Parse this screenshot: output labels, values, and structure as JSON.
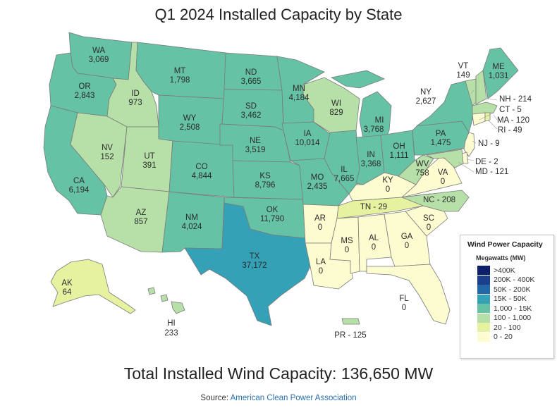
{
  "title": "Q1 2024 Installed Capacity by State",
  "legend": {
    "title": "Wind Power Capacity",
    "unit": "Megawatts (MW)",
    "bins": [
      {
        "label": ">400K",
        "color": "#0b1f6b"
      },
      {
        "label": "200K - 400K",
        "color": "#1b3f8c"
      },
      {
        "label": "50K - 200K",
        "color": "#2367a8"
      },
      {
        "label": "15K - 50K",
        "color": "#35a1b6"
      },
      {
        "label": "1,000 - 15K",
        "color": "#66c2a4"
      },
      {
        "label": "100 - 1,000",
        "color": "#b6e0a7"
      },
      {
        "label": "20 - 100",
        "color": "#e6f2a0"
      },
      {
        "label": "0 - 20",
        "color": "#fdfbd0"
      }
    ]
  },
  "states": {
    "WA": {
      "abbr": "WA",
      "value": "3,069",
      "color": "#66c2a4"
    },
    "OR": {
      "abbr": "OR",
      "value": "2,843",
      "color": "#66c2a4"
    },
    "CA": {
      "abbr": "CA",
      "value": "6,194",
      "color": "#66c2a4"
    },
    "ID": {
      "abbr": "ID",
      "value": "973",
      "color": "#b6e0a7"
    },
    "NV": {
      "abbr": "NV",
      "value": "152",
      "color": "#b6e0a7"
    },
    "UT": {
      "abbr": "UT",
      "value": "391",
      "color": "#b6e0a7"
    },
    "AZ": {
      "abbr": "AZ",
      "value": "857",
      "color": "#b6e0a7"
    },
    "MT": {
      "abbr": "MT",
      "value": "1,798",
      "color": "#66c2a4"
    },
    "WY": {
      "abbr": "WY",
      "value": "2,508",
      "color": "#66c2a4"
    },
    "CO": {
      "abbr": "CO",
      "value": "4,844",
      "color": "#66c2a4"
    },
    "NM": {
      "abbr": "NM",
      "value": "4,024",
      "color": "#66c2a4"
    },
    "ND": {
      "abbr": "ND",
      "value": "3,665",
      "color": "#66c2a4"
    },
    "SD": {
      "abbr": "SD",
      "value": "3,462",
      "color": "#66c2a4"
    },
    "NE": {
      "abbr": "NE",
      "value": "3,519",
      "color": "#66c2a4"
    },
    "KS": {
      "abbr": "KS",
      "value": "8,796",
      "color": "#66c2a4"
    },
    "OK": {
      "abbr": "OK",
      "value": "11,790",
      "color": "#66c2a4"
    },
    "TX": {
      "abbr": "TX",
      "value": "37,172",
      "color": "#35a1b6"
    },
    "MN": {
      "abbr": "MN",
      "value": "4,184",
      "color": "#66c2a4"
    },
    "IA": {
      "abbr": "IA",
      "value": "10,014",
      "color": "#66c2a4"
    },
    "MO": {
      "abbr": "MO",
      "value": "2,435",
      "color": "#66c2a4"
    },
    "AR": {
      "abbr": "AR",
      "value": "0",
      "color": "#fdfbd0"
    },
    "LA": {
      "abbr": "LA",
      "value": "0",
      "color": "#fdfbd0"
    },
    "WI": {
      "abbr": "WI",
      "value": "829",
      "color": "#b6e0a7"
    },
    "IL": {
      "abbr": "IL",
      "value": "7,665",
      "color": "#66c2a4"
    },
    "MI": {
      "abbr": "MI",
      "value": "3,768",
      "color": "#66c2a4"
    },
    "IN": {
      "abbr": "IN",
      "value": "3,368",
      "color": "#66c2a4"
    },
    "OH": {
      "abbr": "OH",
      "value": "1,111",
      "color": "#66c2a4"
    },
    "KY": {
      "abbr": "KY",
      "value": "0",
      "color": "#fdfbd0"
    },
    "TN": {
      "abbr": "TN",
      "value": "29",
      "color": "#e6f2a0"
    },
    "MS": {
      "abbr": "MS",
      "value": "0",
      "color": "#fdfbd0"
    },
    "AL": {
      "abbr": "AL",
      "value": "0",
      "color": "#fdfbd0"
    },
    "GA": {
      "abbr": "GA",
      "value": "0",
      "color": "#fdfbd0"
    },
    "FL": {
      "abbr": "FL",
      "value": "0",
      "color": "#fdfbd0"
    },
    "SC": {
      "abbr": "SC",
      "value": "0",
      "color": "#fdfbd0"
    },
    "NC": {
      "abbr": "NC",
      "value": "208",
      "color": "#b6e0a7"
    },
    "VA": {
      "abbr": "VA",
      "value": "0",
      "color": "#fdfbd0"
    },
    "WV": {
      "abbr": "WV",
      "value": "758",
      "color": "#b6e0a7"
    },
    "PA": {
      "abbr": "PA",
      "value": "1,475",
      "color": "#66c2a4"
    },
    "NY": {
      "abbr": "NY",
      "value": "2,627",
      "color": "#66c2a4"
    },
    "VT": {
      "abbr": "VT",
      "value": "149",
      "color": "#b6e0a7"
    },
    "NH": {
      "abbr": "NH",
      "value": "214",
      "color": "#b6e0a7"
    },
    "ME": {
      "abbr": "ME",
      "value": "1,031",
      "color": "#66c2a4"
    },
    "MA": {
      "abbr": "MA",
      "value": "120",
      "color": "#b6e0a7"
    },
    "CT": {
      "abbr": "CT",
      "value": "5",
      "color": "#fdfbd0"
    },
    "RI": {
      "abbr": "RI",
      "value": "49",
      "color": "#e6f2a0"
    },
    "NJ": {
      "abbr": "NJ",
      "value": "9",
      "color": "#fdfbd0"
    },
    "DE": {
      "abbr": "DE",
      "value": "2",
      "color": "#fdfbd0"
    },
    "MD": {
      "abbr": "MD",
      "value": "121",
      "color": "#b6e0a7"
    },
    "AK": {
      "abbr": "AK",
      "value": "64",
      "color": "#e6f2a0"
    },
    "HI": {
      "abbr": "HI",
      "value": "233",
      "color": "#b6e0a7"
    },
    "PR": {
      "abbr": "PR",
      "value": "125",
      "color": "#b6e0a7"
    }
  },
  "dash_labels": {
    "TN": "TN - 29",
    "NC": "NC - 208",
    "NH": "NH - 214",
    "CT": "CT - 5",
    "MA": "MA - 120",
    "RI": "RI - 49",
    "NJ": "NJ - 9",
    "DE": "DE - 2",
    "MD": "MD - 121",
    "PR": "PR - 125"
  },
  "total": "Total Installed Wind Capacity: 136,650 MW",
  "source": {
    "prefix": "Source: ",
    "link_text": "American Clean Power Association"
  }
}
